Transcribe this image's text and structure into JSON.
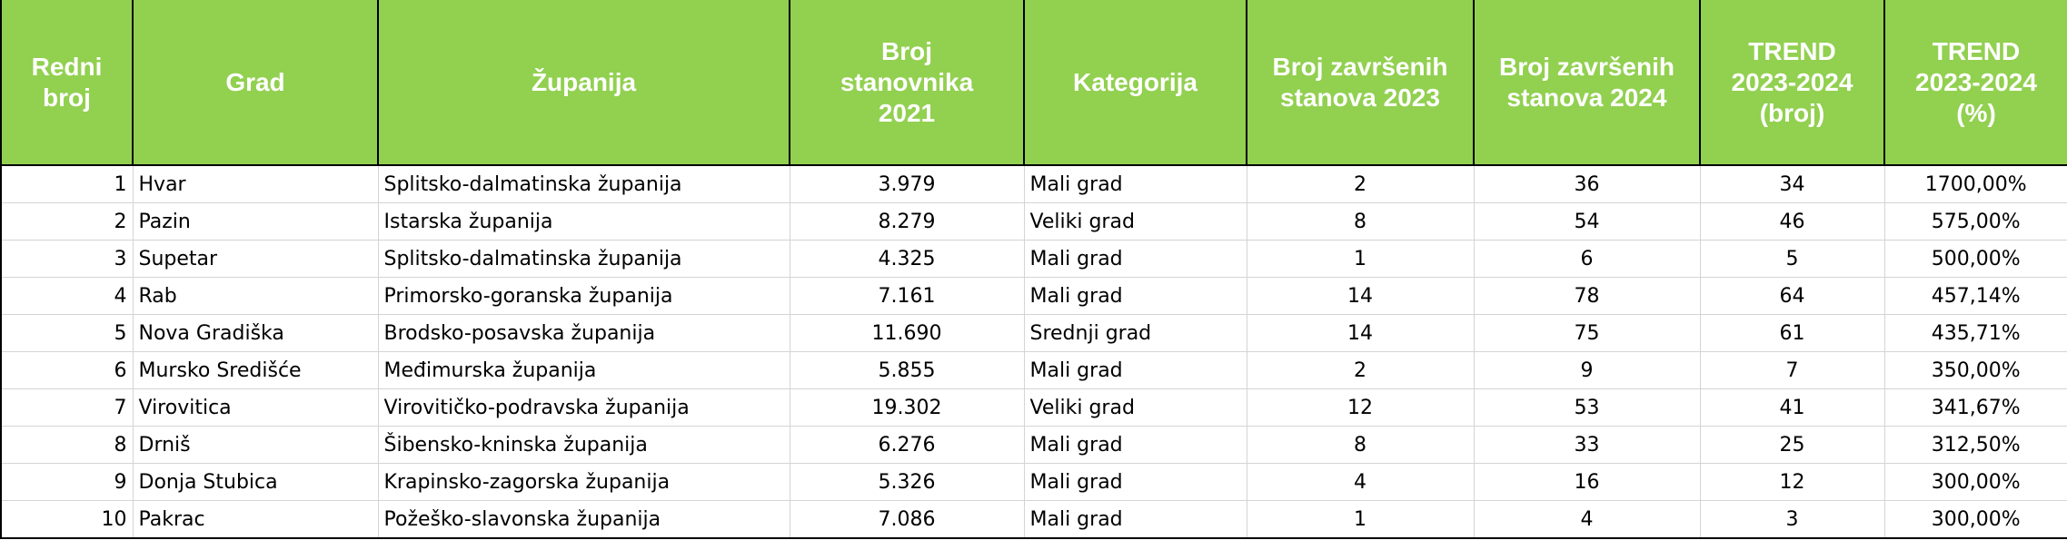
{
  "table": {
    "header": [
      "Redni\nbroj",
      "Grad",
      "Županija",
      "Broj\nstanovnika\n2021",
      "Kategorija",
      "Broj završenih\nstanova 2023",
      "Broj završenih\nstanova 2024",
      "TREND\n2023-2024\n(broj)",
      "TREND\n2023-2024\n(%)"
    ],
    "rows": [
      [
        "1",
        "Hvar",
        "Splitsko-dalmatinska županija",
        "3.979",
        "Mali grad",
        "2",
        "36",
        "34",
        "1700,00%"
      ],
      [
        "2",
        "Pazin",
        "Istarska županija",
        "8.279",
        "Veliki grad",
        "8",
        "54",
        "46",
        "575,00%"
      ],
      [
        "3",
        "Supetar",
        "Splitsko-dalmatinska županija",
        "4.325",
        "Mali grad",
        "1",
        "6",
        "5",
        "500,00%"
      ],
      [
        "4",
        "Rab",
        "Primorsko-goranska županija",
        "7.161",
        "Mali grad",
        "14",
        "78",
        "64",
        "457,14%"
      ],
      [
        "5",
        "Nova Gradiška",
        "Brodsko-posavska županija",
        "11.690",
        "Srednji grad",
        "14",
        "75",
        "61",
        "435,71%"
      ],
      [
        "6",
        "Mursko Središće",
        "Međimurska županija",
        "5.855",
        "Mali grad",
        "2",
        "9",
        "7",
        "350,00%"
      ],
      [
        "7",
        "Virovitica",
        "Virovitičko-podravska županija",
        "19.302",
        "Veliki grad",
        "12",
        "53",
        "41",
        "341,67%"
      ],
      [
        "8",
        "Drniš",
        "Šibensko-kninska županija",
        "6.276",
        "Mali grad",
        "8",
        "33",
        "25",
        "312,50%"
      ],
      [
        "9",
        "Donja Stubica",
        "Krapinsko-zagorska županija",
        "5.326",
        "Mali grad",
        "4",
        "16",
        "12",
        "300,00%"
      ],
      [
        "10",
        "Pakrac",
        "Požeško-slavonska županija",
        "7.086",
        "Mali grad",
        "1",
        "4",
        "3",
        "300,00%"
      ]
    ]
  }
}
